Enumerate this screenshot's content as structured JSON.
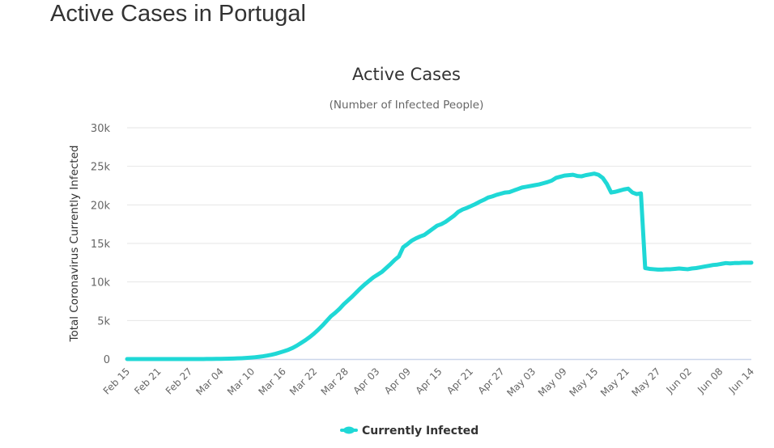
{
  "page": {
    "title": "Active Cases in Portugal"
  },
  "chart_data": {
    "type": "line",
    "title": "Active Cases",
    "subtitle": "(Number of Infected People)",
    "xlabel": "",
    "ylabel": "Total Coronavirus Currently Infected",
    "ylim": [
      0,
      30000
    ],
    "yticks": [
      0,
      5000,
      10000,
      15000,
      20000,
      25000,
      30000
    ],
    "ytick_labels": [
      "0",
      "5k",
      "10k",
      "15k",
      "20k",
      "25k",
      "30k"
    ],
    "x_start": "Feb 15",
    "x_end": "Jun 14",
    "xtick_labels": [
      "Feb 15",
      "Feb 21",
      "Feb 27",
      "Mar 04",
      "Mar 10",
      "Mar 16",
      "Mar 22",
      "Mar 28",
      "Apr 03",
      "Apr 09",
      "Apr 15",
      "Apr 21",
      "Apr 27",
      "May 03",
      "May 09",
      "May 15",
      "May 21",
      "May 27",
      "Jun 02",
      "Jun 08",
      "Jun 14"
    ],
    "grid": true,
    "legend_position": "bottom-center",
    "colors": {
      "series": "#1fd8d6",
      "grid": "#e6e6e6",
      "axis": "#ccd6eb"
    },
    "series": [
      {
        "name": "Currently Infected",
        "values": [
          0,
          0,
          0,
          0,
          0,
          0,
          0,
          0,
          0,
          0,
          0,
          0,
          0,
          0,
          0,
          0,
          2,
          4,
          6,
          9,
          13,
          20,
          30,
          40,
          55,
          70,
          90,
          110,
          140,
          180,
          230,
          290,
          360,
          450,
          560,
          690,
          850,
          1020,
          1210,
          1450,
          1750,
          2100,
          2450,
          2850,
          3300,
          3800,
          4350,
          4950,
          5550,
          6000,
          6500,
          7100,
          7600,
          8100,
          8650,
          9200,
          9700,
          10150,
          10600,
          10950,
          11300,
          11800,
          12300,
          12850,
          13300,
          14500,
          14900,
          15350,
          15650,
          15900,
          16100,
          16500,
          16900,
          17300,
          17500,
          17800,
          18200,
          18600,
          19100,
          19400,
          19600,
          19850,
          20100,
          20400,
          20650,
          20950,
          21100,
          21300,
          21450,
          21600,
          21650,
          21850,
          22050,
          22250,
          22350,
          22450,
          22550,
          22650,
          22800,
          22950,
          23150,
          23500,
          23650,
          23800,
          23850,
          23900,
          23750,
          23700,
          23850,
          23950,
          24050,
          23900,
          23500,
          22700,
          21600,
          21700,
          21850,
          22000,
          22100,
          21600,
          21400,
          21500,
          11800,
          11700,
          11650,
          11600,
          11600,
          11650,
          11650,
          11700,
          11750,
          11700,
          11650,
          11750,
          11800,
          11900,
          12000,
          12100,
          12200,
          12250,
          12350,
          12450,
          12400,
          12450,
          12450,
          12500,
          12500,
          12500
        ]
      }
    ]
  }
}
